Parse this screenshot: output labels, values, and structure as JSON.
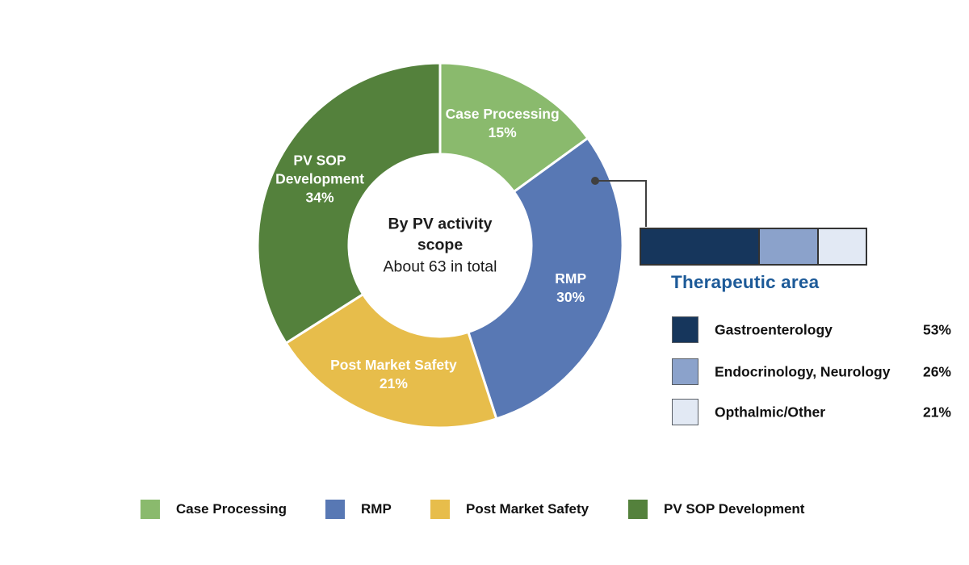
{
  "chart_data": [
    {
      "type": "pie",
      "variant": "donut",
      "center_title": "By PV activity scope",
      "center_subtitle": "About 63 in total",
      "start_angle": "top",
      "direction": "clockwise",
      "segments": [
        {
          "label": "Case Processing",
          "value": 15,
          "color": "#8aba6d"
        },
        {
          "label": "RMP",
          "value": 30,
          "color": "#5878b4"
        },
        {
          "label": "Post Market Safety",
          "value": 21,
          "color": "#e7bd4b"
        },
        {
          "label": "PV SOP Development",
          "value": 34,
          "color": "#54813c",
          "label_wrap": [
            "PV SOP",
            "Development"
          ]
        }
      ],
      "label_text_color": "#ffffff"
    },
    {
      "type": "bar",
      "variant": "stacked-horizontal",
      "title": "Therapeutic area",
      "title_color": "#1d5a98",
      "linked_donut_segment": "RMP",
      "segments": [
        {
          "label": "Gastroenterology",
          "value": 53,
          "color": "#16365c"
        },
        {
          "label": "Endocrinology, Neurology",
          "value": 26,
          "color": "#8ba2cb"
        },
        {
          "label": "Opthalmic/Other",
          "value": 21,
          "color": "#e2e9f4"
        }
      ]
    }
  ],
  "connector_color": "#404040",
  "bottom_legend": {
    "items": [
      {
        "label": "Case Processing"
      },
      {
        "label": "RMP"
      },
      {
        "label": "Post Market Safety"
      },
      {
        "label": "PV SOP Development"
      }
    ]
  }
}
